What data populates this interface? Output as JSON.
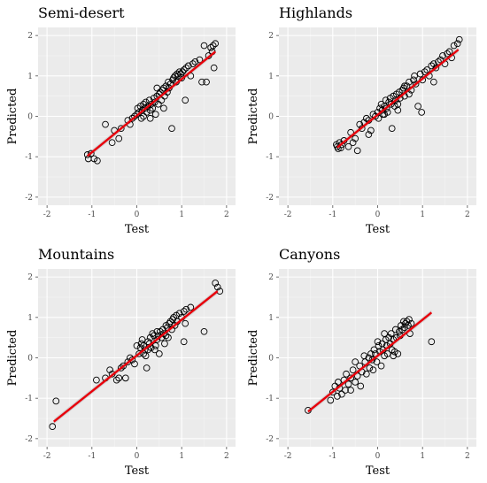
{
  "chart_data": [
    {
      "type": "scatter",
      "title": "Semi-desert",
      "xlabel": "Test",
      "ylabel": "Predicted",
      "xlim": [
        -2.2,
        2.2
      ],
      "ylim": [
        -2.2,
        2.2
      ],
      "xticks": [
        "-2",
        "-1",
        "0",
        "1",
        "2"
      ],
      "yticks": [
        "-2",
        "-1",
        "0",
        "1",
        "2"
      ],
      "grid": true,
      "fit_line": {
        "x": [
          -1.1,
          1.75
        ],
        "y": [
          -0.98,
          1.6
        ],
        "color": "#e8000b"
      },
      "points": [
        [
          -1.1,
          -0.95
        ],
        [
          -1.08,
          -1.05
        ],
        [
          -1.02,
          -0.92
        ],
        [
          -0.95,
          -1.05
        ],
        [
          -0.88,
          -1.1
        ],
        [
          -0.7,
          -0.2
        ],
        [
          -0.55,
          -0.65
        ],
        [
          -0.5,
          -0.35
        ],
        [
          -0.4,
          -0.55
        ],
        [
          -0.35,
          -0.3
        ],
        [
          -0.2,
          -0.1
        ],
        [
          -0.1,
          -0.05
        ],
        [
          -0.05,
          0.0
        ],
        [
          0.0,
          0.05
        ],
        [
          0.02,
          0.2
        ],
        [
          0.05,
          0.1
        ],
        [
          0.08,
          0.25
        ],
        [
          0.1,
          -0.05
        ],
        [
          0.12,
          0.15
        ],
        [
          0.15,
          0.3
        ],
        [
          0.18,
          0.2
        ],
        [
          0.2,
          0.35
        ],
        [
          0.22,
          0.1
        ],
        [
          0.25,
          0.25
        ],
        [
          0.28,
          0.4
        ],
        [
          0.3,
          0.15
        ],
        [
          0.32,
          0.3
        ],
        [
          0.35,
          0.2
        ],
        [
          0.38,
          0.45
        ],
        [
          0.4,
          0.35
        ],
        [
          0.42,
          0.05
        ],
        [
          0.45,
          0.5
        ],
        [
          0.48,
          0.3
        ],
        [
          0.5,
          0.55
        ],
        [
          0.52,
          0.6
        ],
        [
          0.55,
          0.4
        ],
        [
          0.58,
          0.65
        ],
        [
          0.6,
          0.7
        ],
        [
          0.62,
          0.5
        ],
        [
          0.65,
          0.75
        ],
        [
          0.68,
          0.6
        ],
        [
          0.7,
          0.85
        ],
        [
          0.72,
          0.7
        ],
        [
          0.75,
          0.8
        ],
        [
          0.78,
          -0.3
        ],
        [
          0.8,
          0.9
        ],
        [
          0.82,
          0.95
        ],
        [
          0.85,
          1.0
        ],
        [
          0.88,
          0.85
        ],
        [
          0.9,
          1.05
        ],
        [
          0.92,
          1.0
        ],
        [
          0.95,
          1.1
        ],
        [
          0.98,
          1.05
        ],
        [
          1.0,
          0.95
        ],
        [
          1.02,
          1.1
        ],
        [
          1.05,
          1.15
        ],
        [
          1.08,
          0.4
        ],
        [
          1.1,
          1.2
        ],
        [
          1.15,
          1.25
        ],
        [
          1.2,
          1.0
        ],
        [
          1.25,
          1.3
        ],
        [
          1.3,
          1.35
        ],
        [
          1.4,
          1.4
        ],
        [
          1.45,
          0.85
        ],
        [
          1.5,
          1.75
        ],
        [
          1.55,
          0.85
        ],
        [
          1.6,
          1.5
        ],
        [
          1.65,
          1.7
        ],
        [
          1.68,
          1.6
        ],
        [
          1.7,
          1.75
        ],
        [
          1.72,
          1.2
        ],
        [
          1.75,
          1.8
        ],
        [
          0.6,
          0.2
        ],
        [
          0.3,
          -0.05
        ],
        [
          0.15,
          0.0
        ],
        [
          -0.15,
          -0.2
        ],
        [
          0.45,
          0.7
        ]
      ]
    },
    {
      "type": "scatter",
      "title": "Highlands",
      "xlabel": "Test",
      "ylabel": "Predicted",
      "xlim": [
        -2.2,
        2.2
      ],
      "ylim": [
        -2.2,
        2.2
      ],
      "xticks": [
        "-2",
        "-1",
        "0",
        "1",
        "2"
      ],
      "yticks": [
        "-2",
        "-1",
        "0",
        "1",
        "2"
      ],
      "grid": true,
      "fit_line": {
        "x": [
          -0.9,
          1.8
        ],
        "y": [
          -0.77,
          1.65
        ],
        "color": "#e8000b"
      },
      "points": [
        [
          -0.92,
          -0.7
        ],
        [
          -0.9,
          -0.75
        ],
        [
          -0.88,
          -0.8
        ],
        [
          -0.85,
          -0.65
        ],
        [
          -0.82,
          -0.78
        ],
        [
          -0.8,
          -0.7
        ],
        [
          -0.75,
          -0.6
        ],
        [
          -0.65,
          -0.75
        ],
        [
          -0.6,
          -0.4
        ],
        [
          -0.55,
          -0.65
        ],
        [
          -0.5,
          -0.55
        ],
        [
          -0.45,
          -0.85
        ],
        [
          -0.4,
          -0.2
        ],
        [
          -0.35,
          -0.3
        ],
        [
          -0.3,
          -0.15
        ],
        [
          -0.25,
          -0.05
        ],
        [
          -0.2,
          -0.1
        ],
        [
          -0.15,
          -0.35
        ],
        [
          -0.1,
          0.05
        ],
        [
          -0.05,
          0.0
        ],
        [
          0.0,
          0.1
        ],
        [
          0.02,
          -0.05
        ],
        [
          0.05,
          0.2
        ],
        [
          0.08,
          0.3
        ],
        [
          0.1,
          0.15
        ],
        [
          0.12,
          0.05
        ],
        [
          0.15,
          0.25
        ],
        [
          0.18,
          0.4
        ],
        [
          0.2,
          0.2
        ],
        [
          0.22,
          0.1
        ],
        [
          0.25,
          0.35
        ],
        [
          0.28,
          0.45
        ],
        [
          0.3,
          0.3
        ],
        [
          0.32,
          -0.3
        ],
        [
          0.35,
          0.5
        ],
        [
          0.38,
          0.25
        ],
        [
          0.4,
          0.4
        ],
        [
          0.42,
          0.55
        ],
        [
          0.45,
          0.3
        ],
        [
          0.48,
          0.6
        ],
        [
          0.5,
          0.45
        ],
        [
          0.55,
          0.65
        ],
        [
          0.58,
          0.7
        ],
        [
          0.6,
          0.5
        ],
        [
          0.65,
          0.75
        ],
        [
          0.7,
          0.85
        ],
        [
          0.75,
          0.65
        ],
        [
          0.8,
          0.9
        ],
        [
          0.82,
          1.0
        ],
        [
          0.85,
          0.8
        ],
        [
          0.9,
          0.25
        ],
        [
          0.95,
          1.05
        ],
        [
          0.98,
          0.1
        ],
        [
          1.0,
          0.9
        ],
        [
          1.05,
          1.1
        ],
        [
          1.1,
          1.15
        ],
        [
          1.15,
          1.0
        ],
        [
          1.2,
          1.25
        ],
        [
          1.25,
          1.3
        ],
        [
          1.3,
          1.2
        ],
        [
          1.35,
          1.35
        ],
        [
          1.4,
          1.4
        ],
        [
          1.45,
          1.5
        ],
        [
          1.5,
          1.3
        ],
        [
          1.55,
          1.55
        ],
        [
          1.6,
          1.6
        ],
        [
          1.65,
          1.45
        ],
        [
          1.7,
          1.75
        ],
        [
          1.78,
          1.8
        ],
        [
          1.82,
          1.9
        ],
        [
          0.45,
          0.15
        ],
        [
          0.7,
          0.55
        ],
        [
          1.25,
          0.85
        ],
        [
          0.6,
          0.75
        ],
        [
          -0.2,
          -0.45
        ],
        [
          0.15,
          0.05
        ]
      ]
    },
    {
      "type": "scatter",
      "title": "Mountains",
      "xlabel": "Test",
      "ylabel": "Predicted",
      "xlim": [
        -2.2,
        2.2
      ],
      "ylim": [
        -2.2,
        2.2
      ],
      "xticks": [
        "-2",
        "-1",
        "0",
        "1",
        "2"
      ],
      "yticks": [
        "-2",
        "-1",
        "0",
        "1",
        "2"
      ],
      "grid": true,
      "fit_line": {
        "x": [
          -1.85,
          1.8
        ],
        "y": [
          -1.58,
          1.65
        ],
        "color": "#e8000b"
      },
      "points": [
        [
          -1.88,
          -1.7
        ],
        [
          -1.8,
          -1.07
        ],
        [
          -0.9,
          -0.55
        ],
        [
          -0.7,
          -0.5
        ],
        [
          -0.6,
          -0.3
        ],
        [
          -0.55,
          -0.4
        ],
        [
          -0.45,
          -0.55
        ],
        [
          -0.4,
          -0.5
        ],
        [
          -0.35,
          -0.25
        ],
        [
          -0.3,
          -0.2
        ],
        [
          -0.25,
          -0.5
        ],
        [
          -0.2,
          -0.1
        ],
        [
          -0.15,
          0.0
        ],
        [
          -0.1,
          -0.05
        ],
        [
          -0.05,
          -0.15
        ],
        [
          0.0,
          0.3
        ],
        [
          0.05,
          0.1
        ],
        [
          0.08,
          0.25
        ],
        [
          0.1,
          0.35
        ],
        [
          0.12,
          0.45
        ],
        [
          0.15,
          0.1
        ],
        [
          0.18,
          0.2
        ],
        [
          0.2,
          0.05
        ],
        [
          0.22,
          -0.25
        ],
        [
          0.25,
          0.4
        ],
        [
          0.28,
          0.35
        ],
        [
          0.3,
          0.5
        ],
        [
          0.32,
          0.25
        ],
        [
          0.35,
          0.6
        ],
        [
          0.38,
          0.55
        ],
        [
          0.4,
          0.2
        ],
        [
          0.42,
          0.3
        ],
        [
          0.45,
          0.45
        ],
        [
          0.48,
          0.55
        ],
        [
          0.5,
          0.1
        ],
        [
          0.52,
          0.65
        ],
        [
          0.55,
          0.5
        ],
        [
          0.58,
          0.7
        ],
        [
          0.6,
          0.6
        ],
        [
          0.62,
          0.35
        ],
        [
          0.65,
          0.8
        ],
        [
          0.68,
          0.75
        ],
        [
          0.7,
          0.5
        ],
        [
          0.72,
          0.85
        ],
        [
          0.75,
          0.9
        ],
        [
          0.78,
          0.7
        ],
        [
          0.8,
          0.95
        ],
        [
          0.82,
          1.0
        ],
        [
          0.85,
          0.8
        ],
        [
          0.88,
          1.05
        ],
        [
          0.9,
          0.9
        ],
        [
          0.95,
          1.1
        ],
        [
          1.0,
          1.0
        ],
        [
          1.05,
          1.15
        ],
        [
          1.08,
          0.85
        ],
        [
          1.1,
          1.2
        ],
        [
          1.05,
          0.4
        ],
        [
          1.2,
          1.25
        ],
        [
          1.5,
          0.65
        ],
        [
          1.75,
          1.85
        ],
        [
          1.8,
          1.75
        ],
        [
          1.85,
          1.65
        ],
        [
          0.45,
          0.65
        ],
        [
          0.65,
          0.55
        ],
        [
          0.25,
          0.2
        ],
        [
          0.15,
          0.3
        ]
      ]
    },
    {
      "type": "scatter",
      "title": "Canyons",
      "xlabel": "Test",
      "ylabel": "Predicted",
      "xlim": [
        -2.2,
        2.2
      ],
      "ylim": [
        -2.2,
        2.2
      ],
      "xticks": [
        "-2",
        "-1",
        "0",
        "1",
        "2"
      ],
      "yticks": [
        "-2",
        "-1",
        "0",
        "1",
        "2"
      ],
      "grid": true,
      "fit_line": {
        "x": [
          -1.55,
          1.2
        ],
        "y": [
          -1.33,
          1.12
        ],
        "color": "#e8000b"
      },
      "points": [
        [
          -1.55,
          -1.3
        ],
        [
          -1.05,
          -1.05
        ],
        [
          -1.0,
          -0.85
        ],
        [
          -0.95,
          -0.7
        ],
        [
          -0.9,
          -0.95
        ],
        [
          -0.88,
          -0.6
        ],
        [
          -0.85,
          -0.75
        ],
        [
          -0.8,
          -0.9
        ],
        [
          -0.75,
          -0.55
        ],
        [
          -0.72,
          -0.8
        ],
        [
          -0.7,
          -0.4
        ],
        [
          -0.65,
          -0.65
        ],
        [
          -0.6,
          -0.5
        ],
        [
          -0.55,
          -0.3
        ],
        [
          -0.5,
          -0.6
        ],
        [
          -0.45,
          -0.45
        ],
        [
          -0.4,
          -0.2
        ],
        [
          -0.38,
          -0.7
        ],
        [
          -0.35,
          -0.35
        ],
        [
          -0.3,
          0.05
        ],
        [
          -0.28,
          -0.1
        ],
        [
          -0.25,
          -0.4
        ],
        [
          -0.2,
          0.0
        ],
        [
          -0.18,
          -0.25
        ],
        [
          -0.15,
          0.1
        ],
        [
          -0.12,
          -0.05
        ],
        [
          -0.1,
          -0.3
        ],
        [
          -0.08,
          0.2
        ],
        [
          -0.05,
          0.1
        ],
        [
          -0.02,
          -0.1
        ],
        [
          0.0,
          0.4
        ],
        [
          0.02,
          0.3
        ],
        [
          0.05,
          0.15
        ],
        [
          0.08,
          -0.2
        ],
        [
          0.1,
          0.35
        ],
        [
          0.12,
          0.2
        ],
        [
          0.15,
          0.05
        ],
        [
          0.18,
          0.45
        ],
        [
          0.2,
          0.3
        ],
        [
          0.22,
          0.1
        ],
        [
          0.25,
          0.5
        ],
        [
          0.28,
          0.35
        ],
        [
          0.3,
          0.6
        ],
        [
          0.32,
          0.2
        ],
        [
          0.35,
          0.45
        ],
        [
          0.38,
          0.15
        ],
        [
          0.4,
          0.7
        ],
        [
          0.42,
          0.5
        ],
        [
          0.45,
          0.1
        ],
        [
          0.48,
          0.65
        ],
        [
          0.5,
          0.55
        ],
        [
          0.52,
          0.8
        ],
        [
          0.55,
          0.7
        ],
        [
          0.58,
          0.9
        ],
        [
          0.6,
          0.75
        ],
        [
          0.62,
          0.85
        ],
        [
          0.65,
          0.9
        ],
        [
          0.68,
          0.8
        ],
        [
          0.7,
          0.95
        ],
        [
          0.72,
          0.6
        ],
        [
          0.75,
          0.85
        ],
        [
          1.2,
          0.4
        ],
        [
          -0.5,
          -0.1
        ],
        [
          0.15,
          0.6
        ],
        [
          -0.6,
          -0.8
        ],
        [
          0.35,
          0.05
        ]
      ]
    }
  ]
}
